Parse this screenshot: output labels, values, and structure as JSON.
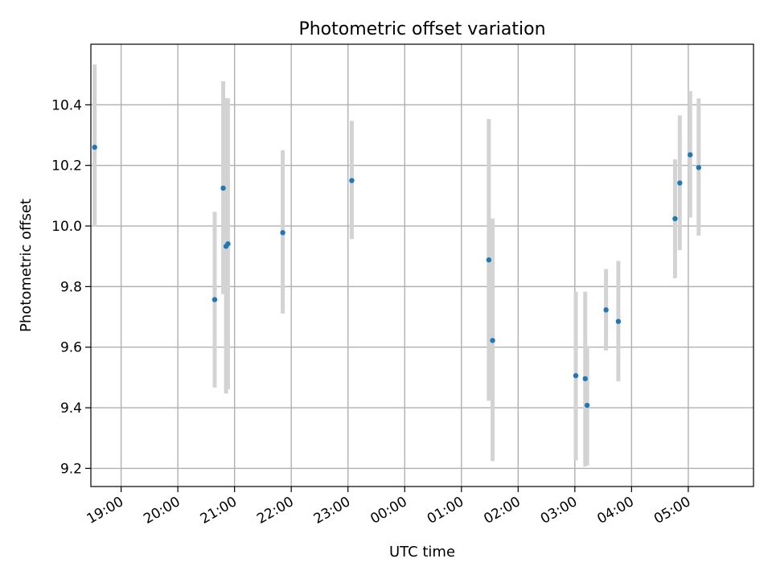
{
  "chart_data": {
    "type": "scatter",
    "title": "Photometric offset variation",
    "xlabel": "UTC time",
    "ylabel": "Photometric offset",
    "x_is_time": true,
    "xlim": [
      "18:28",
      "06:09"
    ],
    "ylim": [
      9.14,
      10.6
    ],
    "xticks": [
      "19:00",
      "20:00",
      "21:00",
      "22:00",
      "23:00",
      "00:00",
      "01:00",
      "02:00",
      "03:00",
      "04:00",
      "05:00"
    ],
    "yticks": [
      9.2,
      9.4,
      9.6,
      9.8,
      10.0,
      10.2,
      10.4
    ],
    "ytick_labels": [
      "9.2",
      "9.4",
      "9.6",
      "9.8",
      "10.0",
      "10.2",
      "10.4"
    ],
    "grid": true,
    "point_color": "#1f77b4",
    "errorbar_color": "#d3d3d3",
    "points": [
      {
        "x": "18:32",
        "y": 10.26,
        "ylo": 9.997,
        "yhi": 10.533
      },
      {
        "x": "20:39",
        "y": 9.757,
        "ylo": 9.467,
        "yhi": 10.047
      },
      {
        "x": "20:48",
        "y": 10.125,
        "ylo": 9.775,
        "yhi": 10.478
      },
      {
        "x": "20:51",
        "y": 9.933,
        "ylo": 9.447,
        "yhi": 10.422
      },
      {
        "x": "20:53",
        "y": 9.941,
        "ylo": 9.461,
        "yhi": 10.421
      },
      {
        "x": "21:51",
        "y": 9.978,
        "ylo": 9.711,
        "yhi": 10.25
      },
      {
        "x": "23:04",
        "y": 10.15,
        "ylo": 9.957,
        "yhi": 10.347
      },
      {
        "x": "01:29",
        "y": 9.888,
        "ylo": 9.423,
        "yhi": 10.353
      },
      {
        "x": "01:33",
        "y": 9.622,
        "ylo": 9.224,
        "yhi": 10.025
      },
      {
        "x": "03:01",
        "y": 9.506,
        "ylo": 9.226,
        "yhi": 9.783
      },
      {
        "x": "03:11",
        "y": 9.496,
        "ylo": 9.206,
        "yhi": 9.783
      },
      {
        "x": "03:13",
        "y": 9.408,
        "ylo": 9.21,
        "yhi": 9.604
      },
      {
        "x": "03:33",
        "y": 9.723,
        "ylo": 9.589,
        "yhi": 9.858
      },
      {
        "x": "03:46",
        "y": 9.685,
        "ylo": 9.487,
        "yhi": 9.885
      },
      {
        "x": "04:46",
        "y": 10.024,
        "ylo": 9.828,
        "yhi": 10.22
      },
      {
        "x": "04:51",
        "y": 10.142,
        "ylo": 9.92,
        "yhi": 10.365
      },
      {
        "x": "05:02",
        "y": 10.235,
        "ylo": 10.028,
        "yhi": 10.445
      },
      {
        "x": "05:11",
        "y": 10.193,
        "ylo": 9.968,
        "yhi": 10.421
      }
    ]
  }
}
